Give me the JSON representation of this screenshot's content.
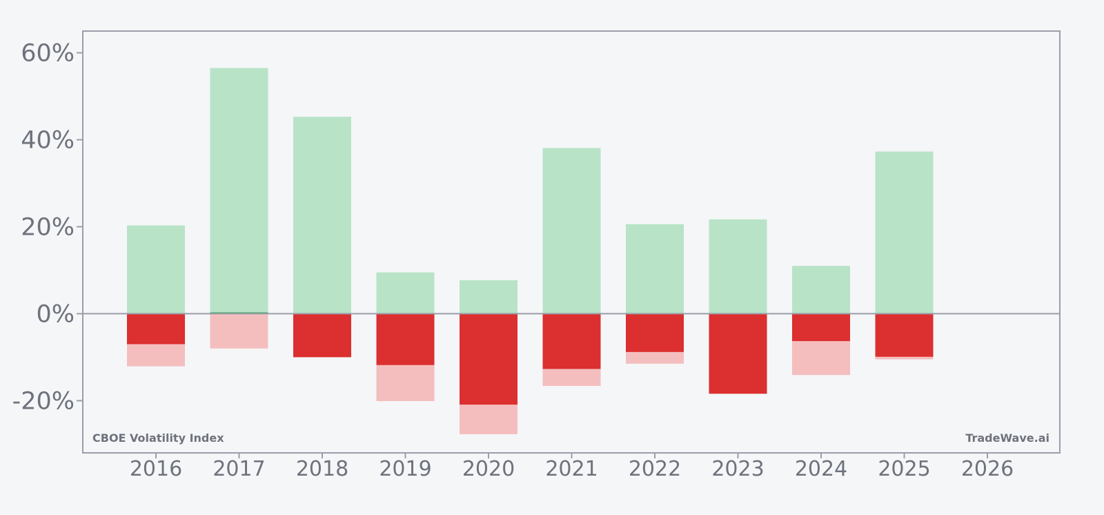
{
  "chart_data": {
    "type": "bar",
    "categories": [
      "2016",
      "2017",
      "2018",
      "2019",
      "2020",
      "2021",
      "2022",
      "2023",
      "2024",
      "2025",
      "2026"
    ],
    "series": [
      {
        "name": "",
        "values": [
          20.3,
          56.5,
          45.3,
          9.5,
          7.7,
          38.1,
          20.6,
          21.7,
          11.0,
          37.3,
          null
        ]
      },
      {
        "name": "",
        "values": [
          -12.1,
          -8.0,
          -10.0,
          -20.1,
          -27.7,
          -16.6,
          -11.5,
          -18.4,
          -14.1,
          -10.5,
          null
        ]
      },
      {
        "name": "",
        "values": [
          -7.0,
          0.3,
          -10.0,
          -11.8,
          -20.9,
          -12.7,
          -8.8,
          -18.4,
          -6.3,
          -9.9,
          null
        ]
      }
    ],
    "ylim": [
      -32,
      65
    ],
    "yticks": [
      60,
      40,
      20,
      0,
      -20
    ],
    "ytick_labels": [
      "60%",
      "40%",
      "20%",
      "0%",
      "-20%"
    ],
    "grid": false,
    "title": "",
    "xlabel": "",
    "ylabel": ""
  },
  "annotations": {
    "left": "CBOE Volatility Index",
    "right": "TradeWave.ai"
  },
  "colors": {
    "background": "#f5f6f8",
    "axis": "#9a9da8",
    "text": "#6e727c",
    "high_bar": "#b8e3c7",
    "low_bar": "#f4bebf",
    "close_negative": "#dc2f2f",
    "close_positive": "#2e9e57"
  }
}
